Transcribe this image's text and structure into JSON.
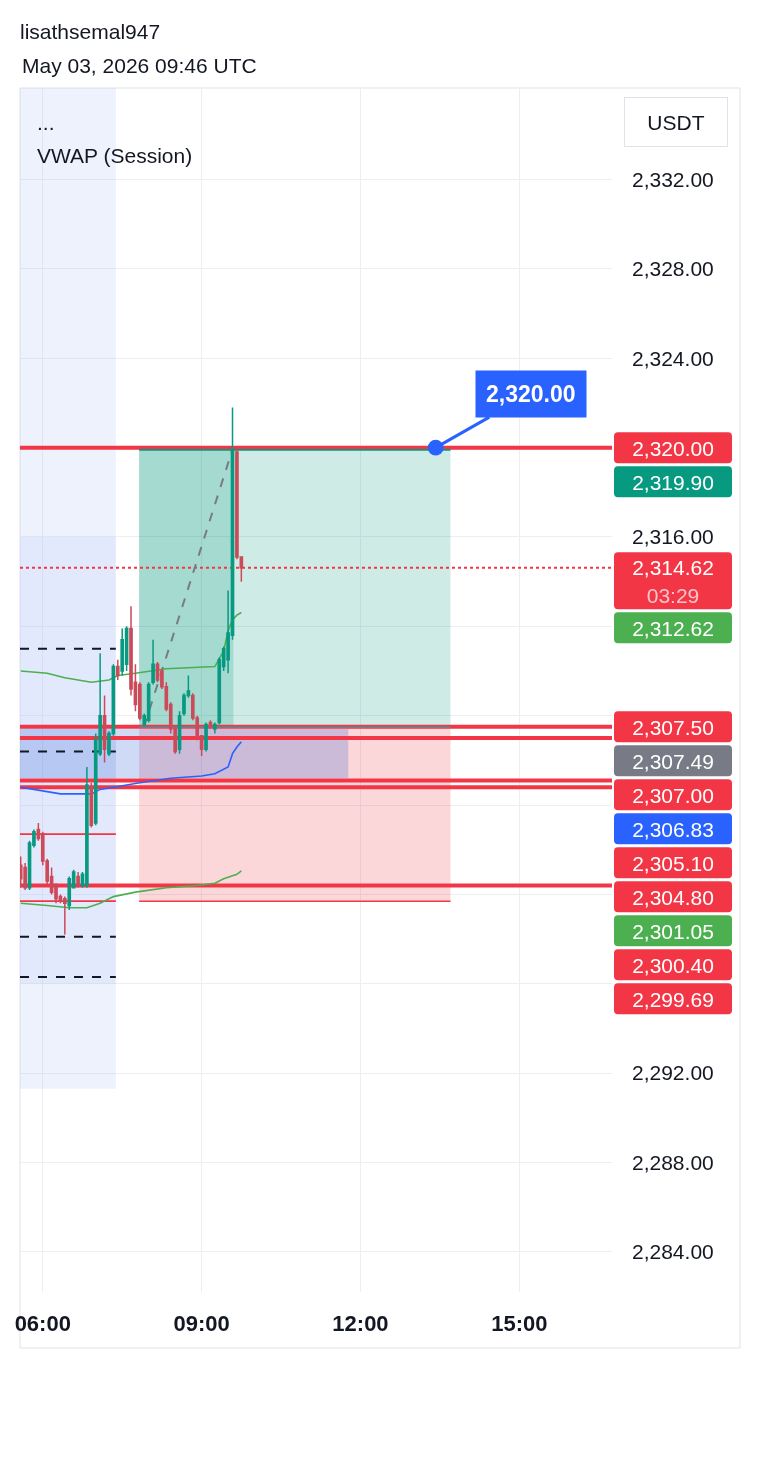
{
  "chart_data": {
    "type": "candlestick",
    "title": "lisathsemal947",
    "subtitle": "May 03, 2026 09:46 UTC",
    "ylabel": "USDT",
    "annotations": [
      "...",
      "VWAP (Session)",
      {
        "text": "2,320.00",
        "x": 13.42,
        "y": 2320
      },
      "2,320.00",
      "2,319.90",
      "2,314.62\n03:29",
      "2,312.62",
      "2,307.50",
      "2,307.49",
      "2,307.00",
      "2,306.83",
      "2,305.10",
      "2,304.80",
      "2,301.05",
      "2,300.40",
      "2,299.69"
    ],
    "x": [
      5.5833,
      5.6667,
      5.75,
      5.8333,
      5.9167,
      6.0,
      6.0833,
      6.1667,
      6.25,
      6.3333,
      6.4167,
      6.5,
      6.5833,
      6.6667,
      6.75,
      6.8333,
      6.9167,
      7.0,
      7.0833,
      7.1667,
      7.25,
      7.3333,
      7.4167,
      7.5,
      7.5833,
      7.6667,
      7.75,
      7.8333,
      7.9167,
      8.0,
      8.0833,
      8.1667,
      8.25,
      8.3333,
      8.4167,
      8.5,
      8.5833,
      8.6667,
      8.75,
      8.8333,
      8.9167,
      9.0,
      9.0833,
      9.1667,
      9.25,
      9.3333,
      9.4167,
      9.5,
      9.5833,
      9.6667,
      9.75
    ],
    "ohlc": [
      [
        2301.3,
        2301.7,
        2300.3,
        2300.7
      ],
      [
        2301.2,
        2301.4,
        2300.2,
        2300.3
      ],
      [
        2300.3,
        2302.4,
        2300.2,
        2302.3
      ],
      [
        2302.2,
        2302.9,
        2302.1,
        2302.8
      ],
      [
        2302.9,
        2303.2,
        2302.4,
        2302.5
      ],
      [
        2302.7,
        2302.8,
        2301.3,
        2301.5
      ],
      [
        2301.5,
        2301.6,
        2300.4,
        2300.6
      ],
      [
        2300.8,
        2301.2,
        2300.0,
        2300.1
      ],
      [
        2300.4,
        2300.5,
        2299.6,
        2299.8
      ],
      [
        2299.9,
        2300.0,
        2299.6,
        2299.7
      ],
      [
        2299.8,
        2299.9,
        2298.2,
        2299.6
      ],
      [
        2299.5,
        2300.8,
        2299.3,
        2300.7
      ],
      [
        2300.3,
        2301.1,
        2300.3,
        2301.0
      ],
      [
        2300.8,
        2301.0,
        2300.3,
        2300.4
      ],
      [
        2300.4,
        2301.0,
        2300.3,
        2300.9
      ],
      [
        2300.4,
        2305.7,
        2300.3,
        2304.9
      ],
      [
        2304.8,
        2305.0,
        2303.0,
        2303.1
      ],
      [
        2303.2,
        2307.2,
        2303.1,
        2306.9
      ],
      [
        2306.3,
        2310.8,
        2306.2,
        2308.0
      ],
      [
        2308.0,
        2308.9,
        2305.9,
        2306.5
      ],
      [
        2306.3,
        2307.3,
        2306.2,
        2307.2
      ],
      [
        2307.2,
        2310.3,
        2307.1,
        2310.2
      ],
      [
        2310.2,
        2310.5,
        2309.6,
        2309.8
      ],
      [
        2310.0,
        2311.9,
        2309.8,
        2311.4
      ],
      [
        2310.3,
        2312.0,
        2310.0,
        2311.9
      ],
      [
        2311.9,
        2312.9,
        2308.9,
        2309.2
      ],
      [
        2309.5,
        2310.3,
        2308.2,
        2308.5
      ],
      [
        2309.4,
        2309.5,
        2307.8,
        2307.9
      ],
      [
        2307.6,
        2308.1,
        2307.5,
        2308.0
      ],
      [
        2307.8,
        2309.5,
        2307.7,
        2309.4
      ],
      [
        2309.5,
        2311.4,
        2309.4,
        2310.3
      ],
      [
        2310.3,
        2310.4,
        2309.5,
        2309.6
      ],
      [
        2310.0,
        2310.1,
        2309.2,
        2309.3
      ],
      [
        2309.3,
        2309.5,
        2308.2,
        2308.3
      ],
      [
        2308.5,
        2308.6,
        2307.2,
        2307.4
      ],
      [
        2307.4,
        2307.5,
        2306.3,
        2306.4
      ],
      [
        2306.5,
        2308.2,
        2306.3,
        2308.0
      ],
      [
        2308.1,
        2309.0,
        2308.0,
        2308.9
      ],
      [
        2308.9,
        2309.8,
        2308.8,
        2309.1
      ],
      [
        2308.9,
        2309.0,
        2307.8,
        2307.9
      ],
      [
        2307.9,
        2308.0,
        2306.9,
        2307.1
      ],
      [
        2307.1,
        2307.1,
        2306.2,
        2306.5
      ],
      [
        2306.5,
        2307.7,
        2306.4,
        2307.6
      ],
      [
        2307.7,
        2307.8,
        2307.4,
        2307.5
      ],
      [
        2307.4,
        2307.7,
        2307.2,
        2307.6
      ],
      [
        2307.7,
        2310.6,
        2307.6,
        2310.5
      ],
      [
        2310.2,
        2311.1,
        2310.0,
        2311.0
      ],
      [
        2310.5,
        2313.6,
        2309.9,
        2311.7
      ],
      [
        2311.6,
        2321.8,
        2311.4,
        2319.9
      ],
      [
        2319.8,
        2319.9,
        2315.0,
        2315.1
      ],
      [
        2315.1,
        2315.1,
        2314.0,
        2314.62
      ]
    ],
    "colors": [
      "#cc4a59",
      "#cc4a59",
      "#089981",
      "#089981",
      "#cc4a59",
      "#cc4a59",
      "#cc4a59",
      "#cc4a59",
      "#cc4a59",
      "#cc4a59",
      "#cc4a59",
      "#089981",
      "#089981",
      "#cc4a59",
      "#089981",
      "#089981",
      "#cc4a59",
      "#089981",
      "#089981",
      "#cc4a59",
      "#089981",
      "#089981",
      "#cc4a59",
      "#089981",
      "#089981",
      "#cc4a59",
      "#cc4a59",
      "#cc4a59",
      "#089981",
      "#089981",
      "#089981",
      "#cc4a59",
      "#cc4a59",
      "#cc4a59",
      "#cc4a59",
      "#cc4a59",
      "#089981",
      "#089981",
      "#089981",
      "#cc4a59",
      "#cc4a59",
      "#cc4a59",
      "#089981",
      "#cc4a59",
      "#089981",
      "#089981",
      "#089981",
      "#089981",
      "#089981",
      "#cc4a59",
      "#cc4a59"
    ],
    "series": [
      {
        "type": "line",
        "color": "#aabef5",
        "x": [
          5.57,
          7.38
        ],
        "values": [
          null,
          null
        ],
        "lower": [
          2291.3,
          2291.3
        ],
        "upper": [
          2336.1,
          2336.1
        ]
      },
      {
        "type": "line",
        "color": "#b7caf8",
        "x": [
          5.57,
          7.38
        ],
        "values": [
          null,
          null
        ],
        "lower": [
          2296.0,
          2296.0
        ],
        "upper": [
          2316.0,
          2316.0
        ]
      },
      {
        "type": "line",
        "color": "#089981",
        "x": [
          7.82,
          13.7
        ],
        "values": [
          2319.9,
          2319.9
        ],
        "lower": [
          2307.49,
          2307.49
        ],
        "upper": [
          2319.9,
          2319.9
        ]
      },
      {
        "type": "line",
        "color": "#06957d",
        "x": [
          7.82,
          9.6
        ],
        "values": [
          null,
          null
        ],
        "lower": [
          2307.49,
          2307.49
        ],
        "upper": [
          2319.9,
          2319.9
        ]
      },
      {
        "type": "line",
        "color": "#f23645",
        "x": [
          7.82,
          13.7
        ],
        "values": [
          2299.69,
          2299.69
        ],
        "lower": [
          2299.69,
          2299.69
        ],
        "upper": [
          2307.49,
          2307.49
        ]
      },
      {
        "type": "line",
        "color": "#0c45d4",
        "x": [
          5.57,
          11.77
        ],
        "values": [
          null,
          null
        ],
        "lower": [
          2305.2,
          2305.2
        ],
        "upper": [
          2307.4,
          2307.4
        ]
      },
      {
        "type": "line",
        "color": "#787b86",
        "x": [
          7.82,
          13.7
        ],
        "values": [
          2307.49,
          2307.49
        ]
      },
      {
        "type": "line",
        "color": "#787b86",
        "line_style": "dashed",
        "x": [
          7.91,
          9.58
        ],
        "values": [
          2307.49,
          2319.9
        ]
      },
      {
        "type": "line",
        "color": "#131722",
        "line_style": "dashed",
        "x": [
          5.57,
          7.38
        ],
        "values": [
          2311.0,
          2311.0
        ]
      },
      {
        "type": "line",
        "color": "#131722",
        "line_style": "dashed",
        "x": [
          5.57,
          7.38
        ],
        "values": [
          2306.4,
          2306.4
        ]
      },
      {
        "type": "line",
        "color": "#131722",
        "line_style": "dashed",
        "x": [
          5.57,
          7.38
        ],
        "values": [
          2298.1,
          2298.1
        ]
      },
      {
        "type": "line",
        "color": "#131722",
        "line_style": "dashed",
        "x": [
          5.57,
          7.38
        ],
        "values": [
          2296.3,
          2296.3
        ]
      },
      {
        "type": "line",
        "color": "#f23645",
        "x": [
          5.57,
          7.38
        ],
        "values": [
          2302.7,
          2302.7
        ]
      },
      {
        "type": "line",
        "color": "#f23645",
        "x": [
          5.57,
          7.38
        ],
        "values": [
          2299.7,
          2299.7
        ]
      },
      {
        "type": "line",
        "color": "#2962ff",
        "x": [
          5.5833,
          6.0833,
          6.3333,
          6.5833,
          6.9167,
          7.0833,
          7.3333,
          7.8333,
          8.4167,
          9.0,
          9.25,
          9.5,
          9.5833,
          9.6667,
          9.75
        ],
        "values": [
          2304.8,
          2304.6,
          2304.5,
          2304.5,
          2304.5,
          2304.7,
          2304.8,
          2305.0,
          2305.2,
          2305.3,
          2305.4,
          2305.7,
          2306.3,
          2306.6,
          2306.83
        ]
      },
      {
        "type": "line",
        "color": "#4caf50",
        "x": [
          5.5833,
          6.0833,
          6.4167,
          6.9167,
          7.25,
          7.4167,
          7.75,
          8.3333,
          9.25,
          9.4167,
          9.5,
          9.5833,
          9.6667,
          9.75
        ],
        "values": [
          2310.0,
          2309.9,
          2309.7,
          2309.5,
          2309.6,
          2309.8,
          2309.9,
          2310.1,
          2310.2,
          2310.9,
          2311.8,
          2312.3,
          2312.5,
          2312.62
        ]
      },
      {
        "type": "line",
        "color": "#4caf50",
        "x": [
          5.5833,
          6.0833,
          6.5,
          6.8333,
          7.0833,
          7.3333,
          7.75,
          8.3333,
          8.9167,
          9.25,
          9.4167,
          9.6667,
          9.75
        ],
        "values": [
          2299.6,
          2299.5,
          2299.4,
          2299.4,
          2299.6,
          2299.9,
          2300.1,
          2300.3,
          2300.4,
          2300.5,
          2300.7,
          2300.9,
          2301.05
        ]
      }
    ],
    "ref_lines": [
      {
        "axis": "y",
        "value": 2320.0,
        "color": "#f23645"
      },
      {
        "axis": "y",
        "value": 2314.62,
        "color": "#f23645",
        "line_style": "dotted"
      },
      {
        "axis": "y",
        "value": 2307.5,
        "color": "#f23645"
      },
      {
        "axis": "y",
        "value": 2307.0,
        "color": "#f23645"
      },
      {
        "axis": "y",
        "value": 2305.1,
        "color": "#f23645"
      },
      {
        "axis": "y",
        "value": 2304.8,
        "color": "#f23645"
      },
      {
        "axis": "y",
        "value": 2300.4,
        "color": "#f23645"
      }
    ],
    "xlim": [
      5.57,
      16.75
    ],
    "ylim": [
      2282.2,
      2336.1
    ],
    "xticks": [
      {
        "value": 6,
        "label": "06:00"
      },
      {
        "value": 9,
        "label": "09:00"
      },
      {
        "value": 12,
        "label": "12:00"
      },
      {
        "value": 15,
        "label": "15:00"
      }
    ],
    "yticks": [
      {
        "value": 2284,
        "label": "2,284.00"
      },
      {
        "value": 2288,
        "label": "2,288.00"
      },
      {
        "value": 2292,
        "label": "2,292.00"
      },
      {
        "value": 2296,
        "label": null
      },
      {
        "value": 2300,
        "label": null
      },
      {
        "value": 2304,
        "label": null
      },
      {
        "value": 2308,
        "label": null
      },
      {
        "value": 2312,
        "label": null
      },
      {
        "value": 2316,
        "label": "2,316.00"
      },
      {
        "value": 2320,
        "label": null
      },
      {
        "value": 2324,
        "label": "2,324.00"
      },
      {
        "value": 2328,
        "label": "2,328.00"
      },
      {
        "value": 2332,
        "label": "2,332.00"
      }
    ],
    "grid": true
  }
}
